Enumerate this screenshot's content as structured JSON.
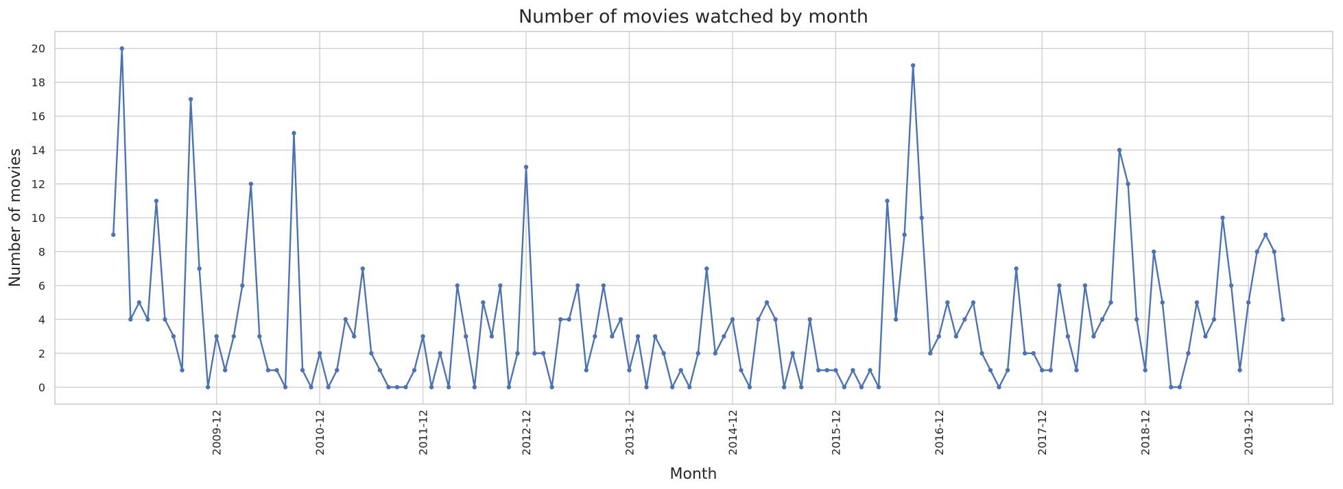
{
  "chart_data": {
    "type": "line",
    "title": "Number of movies watched by month",
    "xlabel": "Month",
    "ylabel": "Number of movies",
    "ylim": [
      -1,
      21
    ],
    "yticks": [
      0,
      2,
      4,
      6,
      8,
      10,
      12,
      14,
      16,
      18,
      20
    ],
    "x_start": "2008-12",
    "xlim_months": [
      -6.8,
      141.8
    ],
    "xticks": [
      "2009-12",
      "2010-12",
      "2011-12",
      "2012-12",
      "2013-12",
      "2014-12",
      "2015-12",
      "2016-12",
      "2017-12",
      "2018-12",
      "2019-12"
    ],
    "grid": true,
    "color": "#4c72b0",
    "series": [
      {
        "values": [
          9,
          20,
          4,
          5,
          4,
          11,
          4,
          3,
          1,
          17,
          7,
          0,
          3,
          1,
          3,
          6,
          12,
          3,
          1,
          1,
          0,
          15,
          1,
          0,
          2,
          0,
          1,
          4,
          3,
          7,
          2,
          1,
          0,
          0,
          0,
          1,
          3,
          0,
          2,
          0,
          6,
          3,
          0,
          5,
          3,
          6,
          0,
          2,
          13,
          2,
          2,
          0,
          4,
          4,
          6,
          1,
          3,
          6,
          3,
          4,
          1,
          3,
          0,
          3,
          2,
          0,
          1,
          0,
          2,
          7,
          2,
          3,
          4,
          1,
          0,
          4,
          5,
          4,
          0,
          2,
          0,
          4,
          1,
          1,
          1,
          0,
          1,
          0,
          1,
          0,
          11,
          4,
          9,
          19,
          10,
          2,
          3,
          5,
          3,
          4,
          5,
          2,
          1,
          0,
          1,
          7,
          2,
          2,
          1,
          1,
          6,
          3,
          1,
          6,
          3,
          4,
          5,
          14,
          12,
          4,
          1,
          8,
          5,
          0,
          0,
          2,
          5,
          3,
          4,
          10,
          6,
          1,
          5,
          8,
          9,
          8,
          4
        ]
      }
    ]
  }
}
